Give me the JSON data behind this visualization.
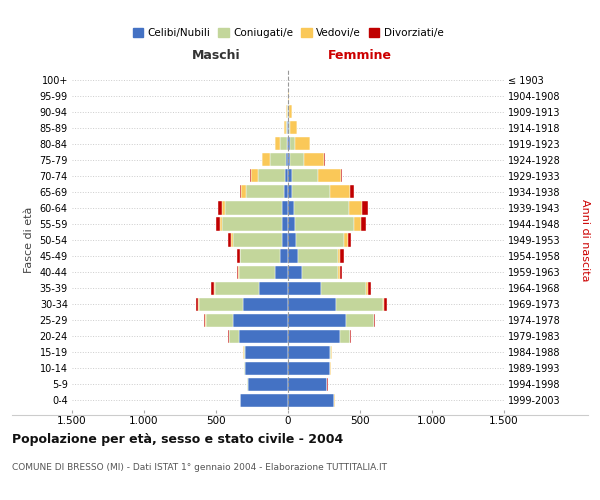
{
  "age_groups": [
    "100+",
    "95-99",
    "90-94",
    "85-89",
    "80-84",
    "75-79",
    "70-74",
    "65-69",
    "60-64",
    "55-59",
    "50-54",
    "45-49",
    "40-44",
    "35-39",
    "30-34",
    "25-29",
    "20-24",
    "15-19",
    "10-14",
    "5-9",
    "0-4"
  ],
  "birth_years": [
    "≤ 1903",
    "1904-1908",
    "1909-1913",
    "1914-1918",
    "1919-1923",
    "1924-1928",
    "1929-1933",
    "1934-1938",
    "1939-1943",
    "1944-1948",
    "1949-1953",
    "1954-1958",
    "1959-1963",
    "1964-1968",
    "1969-1973",
    "1974-1978",
    "1979-1983",
    "1984-1988",
    "1989-1993",
    "1994-1998",
    "1999-2003"
  ],
  "maschi_celibi": [
    1,
    2,
    3,
    5,
    8,
    15,
    20,
    25,
    45,
    40,
    45,
    55,
    90,
    200,
    310,
    380,
    340,
    300,
    300,
    280,
    330
  ],
  "maschi_coniugati": [
    0,
    0,
    4,
    12,
    45,
    110,
    190,
    270,
    390,
    420,
    340,
    275,
    250,
    310,
    310,
    190,
    70,
    8,
    4,
    2,
    2
  ],
  "maschi_vedovi": [
    0,
    0,
    4,
    12,
    35,
    55,
    50,
    30,
    22,
    12,
    8,
    4,
    4,
    4,
    4,
    4,
    2,
    2,
    2,
    2,
    2
  ],
  "maschi_divorziati": [
    0,
    0,
    0,
    0,
    0,
    4,
    4,
    8,
    30,
    25,
    22,
    18,
    12,
    18,
    18,
    8,
    4,
    2,
    2,
    2,
    2
  ],
  "femmine_celibi": [
    1,
    2,
    6,
    8,
    12,
    16,
    25,
    28,
    45,
    50,
    55,
    70,
    100,
    230,
    330,
    400,
    360,
    290,
    290,
    270,
    320
  ],
  "femmine_coniugati": [
    0,
    0,
    4,
    8,
    38,
    95,
    185,
    265,
    380,
    410,
    335,
    275,
    250,
    315,
    330,
    195,
    70,
    12,
    4,
    2,
    2
  ],
  "femmine_vedovi": [
    2,
    5,
    18,
    45,
    100,
    140,
    160,
    140,
    92,
    50,
    25,
    18,
    8,
    8,
    4,
    4,
    2,
    2,
    2,
    2,
    2
  ],
  "femmine_divorziati": [
    0,
    0,
    0,
    2,
    2,
    4,
    8,
    22,
    40,
    30,
    25,
    25,
    18,
    22,
    22,
    8,
    4,
    2,
    2,
    2,
    2
  ],
  "colors": {
    "celibi": "#4472C4",
    "coniugati": "#C3D69B",
    "vedovi": "#FAC858",
    "divorziati": "#C00000"
  },
  "title": "Popolazione per età, sesso e stato civile - 2004",
  "subtitle": "COMUNE DI BRESSO (MI) - Dati ISTAT 1° gennaio 2004 - Elaborazione TUTTITALIA.IT",
  "xlabel_left": "Maschi",
  "xlabel_right": "Femmine",
  "ylabel_left": "Fasce di età",
  "ylabel_right": "Anni di nascita",
  "xlim": 1500,
  "bg_color": "#ffffff",
  "grid_color": "#cccccc",
  "legend_labels": [
    "Celibi/Nubili",
    "Coniugati/e",
    "Vedovi/e",
    "Divorziati/e"
  ]
}
